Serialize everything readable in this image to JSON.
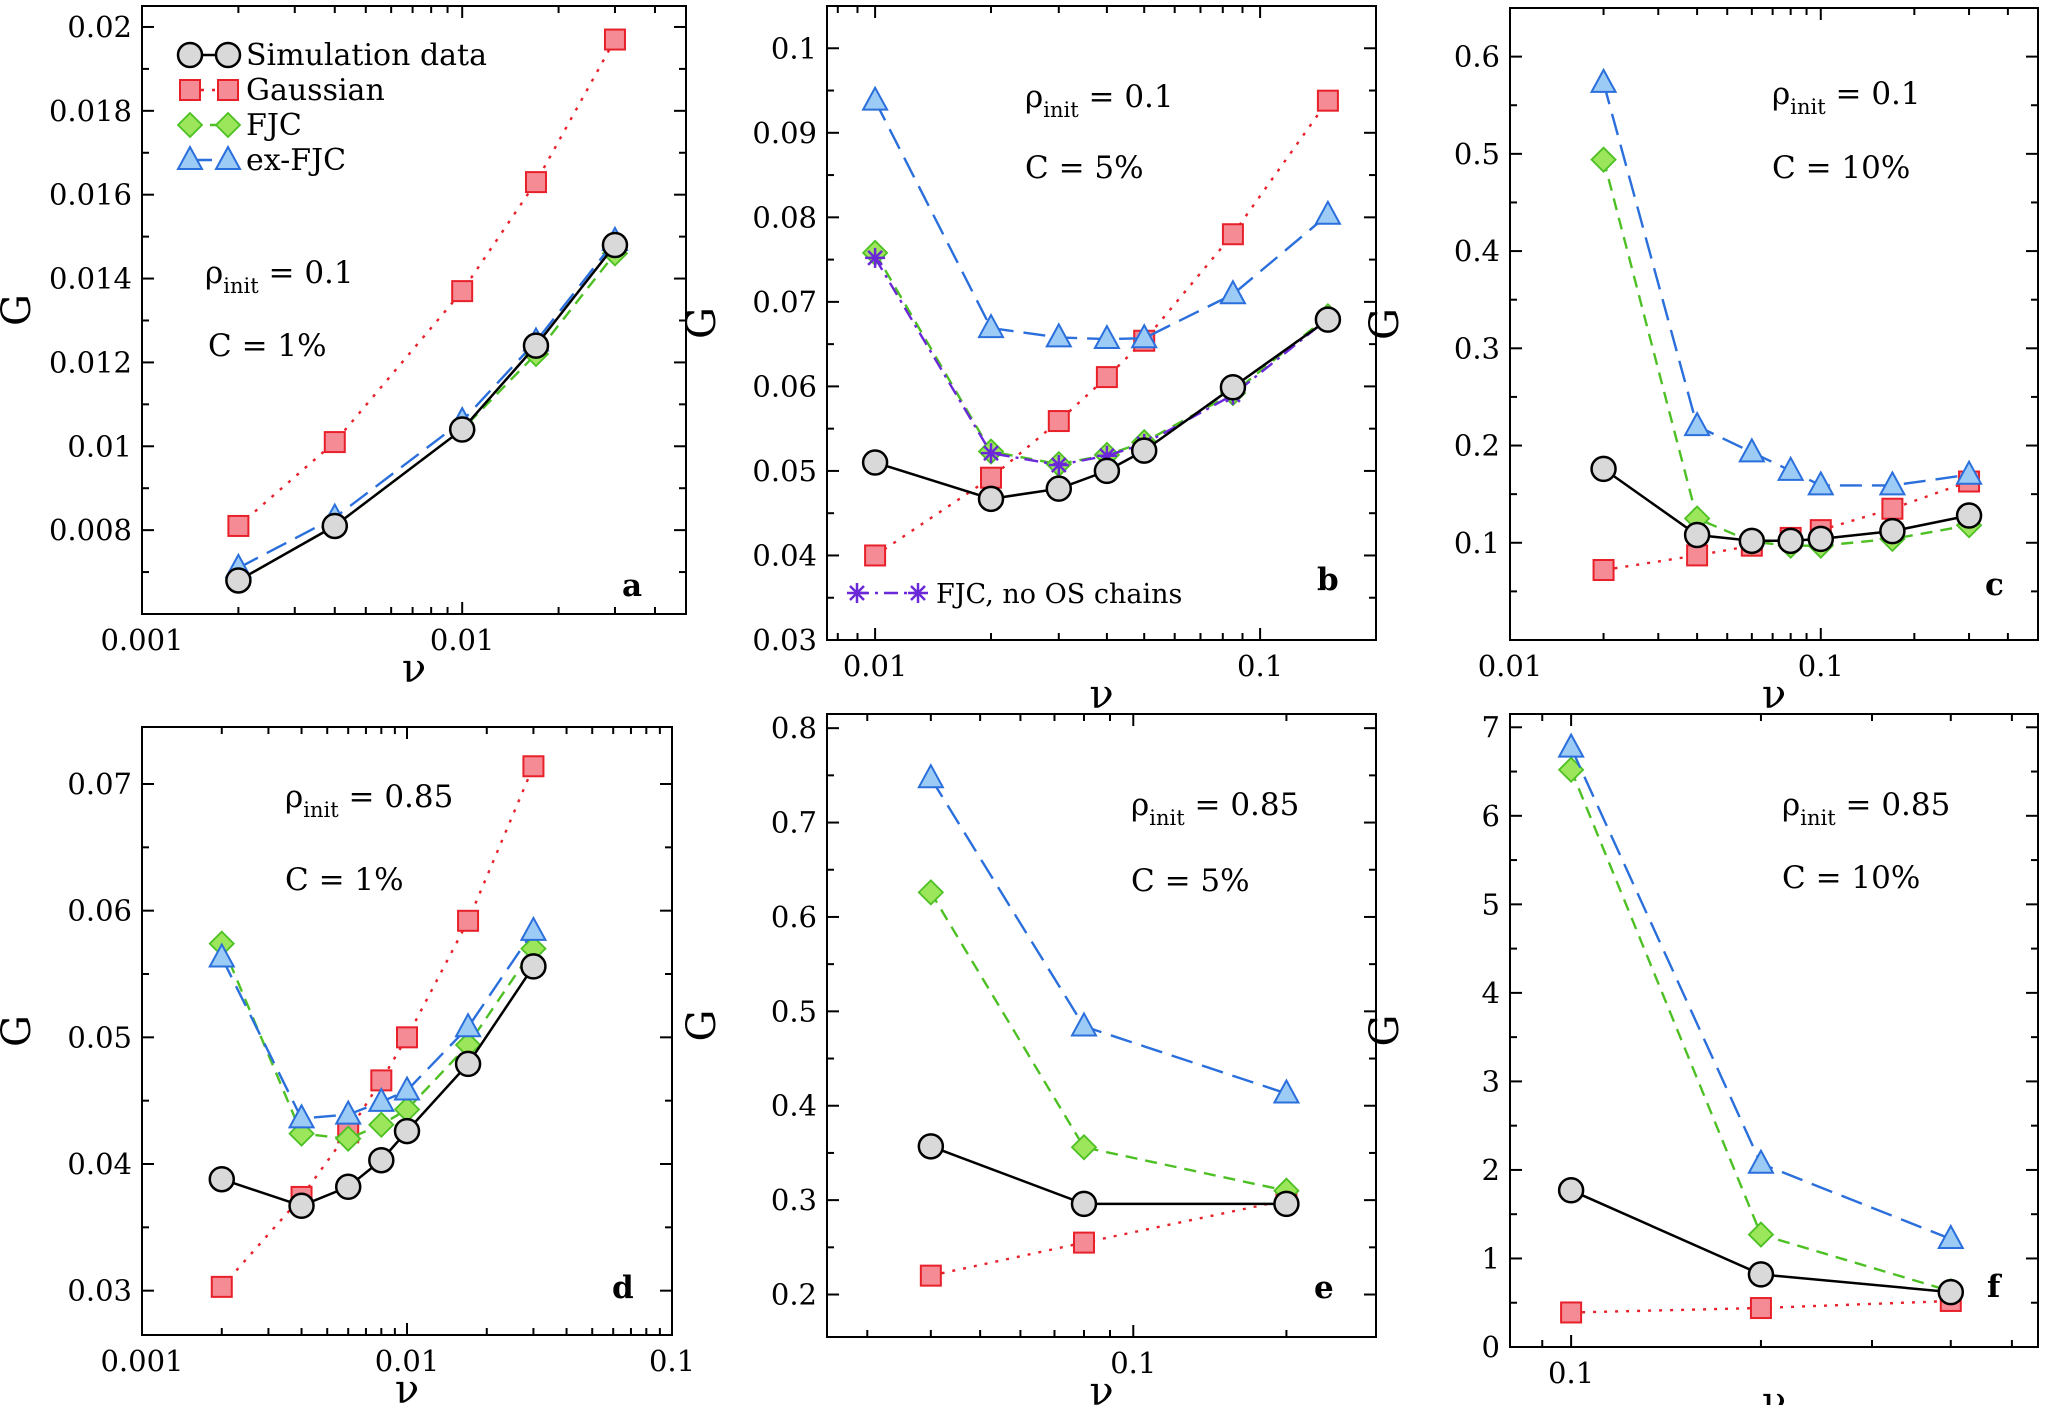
{
  "chart_data": [
    {
      "type": "line",
      "panel_label": "a",
      "xscale": "log",
      "xlim": [
        0.001,
        0.05
      ],
      "ylim": [
        0.006,
        0.0205
      ],
      "xticks": [
        0.001,
        0.01
      ],
      "xtick_labels": [
        "0.001",
        "0.01"
      ],
      "yticks": [
        0.008,
        0.01,
        0.012,
        0.014,
        0.016,
        0.018,
        0.02
      ],
      "ytick_labels": [
        "0.008",
        "0.01",
        "0.012",
        "0.014",
        "0.016",
        "0.018",
        "0.02"
      ],
      "xlabel": "ν",
      "ylabel": "G",
      "annotation": {
        "rho_symbol": "ρ",
        "rho_sub": "init",
        "rho_value": " = 0.1",
        "c_text": "C = 1%"
      },
      "series": [
        {
          "key": "sim",
          "name": "Simulation data",
          "x": [
            0.002,
            0.004,
            0.01,
            0.017,
            0.03
          ],
          "y": [
            0.0068,
            0.0081,
            0.0104,
            0.0124,
            0.0148
          ]
        },
        {
          "key": "gauss",
          "name": "Gaussian",
          "x": [
            0.002,
            0.004,
            0.01,
            0.017,
            0.03
          ],
          "y": [
            0.0081,
            0.0101,
            0.0137,
            0.0163,
            0.0197
          ]
        },
        {
          "key": "fjc",
          "name": "FJC",
          "x": [
            0.002,
            0.004,
            0.01,
            0.017,
            0.03
          ],
          "y": [
            0.0068,
            0.0081,
            0.0104,
            0.0122,
            0.0146
          ]
        },
        {
          "key": "exfjc",
          "name": "ex-FJC",
          "x": [
            0.002,
            0.004,
            0.01,
            0.017,
            0.03
          ],
          "y": [
            0.0071,
            0.0083,
            0.0106,
            0.0125,
            0.0149
          ]
        }
      ],
      "legend": {
        "position": "top-left",
        "entries": [
          "Simulation data",
          "Gaussian",
          "FJC",
          "ex-FJC"
        ]
      }
    },
    {
      "type": "line",
      "panel_label": "b",
      "xscale": "log",
      "xlim": [
        0.0075,
        0.2
      ],
      "ylim": [
        0.03,
        0.105
      ],
      "xticks": [
        0.01,
        0.1
      ],
      "xtick_labels": [
        "0.01",
        "0.1"
      ],
      "yticks": [
        0.03,
        0.04,
        0.05,
        0.06,
        0.07,
        0.08,
        0.09,
        0.1
      ],
      "ytick_labels": [
        "0.03",
        "0.04",
        "0.05",
        "0.06",
        "0.07",
        "0.08",
        "0.09",
        "0.1"
      ],
      "xlabel": "ν",
      "ylabel": "G",
      "annotation": {
        "rho_symbol": "ρ",
        "rho_sub": "init",
        "rho_value": " = 0.1",
        "c_text": "C = 5%"
      },
      "series": [
        {
          "key": "sim",
          "name": "Simulation data",
          "x": [
            0.01,
            0.02,
            0.03,
            0.04,
            0.05,
            0.085,
            0.15
          ],
          "y": [
            0.051,
            0.0467,
            0.0479,
            0.05,
            0.0524,
            0.0599,
            0.0679
          ]
        },
        {
          "key": "gauss",
          "name": "Gaussian",
          "x": [
            0.01,
            0.02,
            0.03,
            0.04,
            0.05,
            0.085,
            0.15
          ],
          "y": [
            0.04,
            0.0492,
            0.0559,
            0.0611,
            0.0654,
            0.078,
            0.0938
          ]
        },
        {
          "key": "fjc",
          "name": "FJC",
          "x": [
            0.01,
            0.02,
            0.03,
            0.04,
            0.05,
            0.085,
            0.15
          ],
          "y": [
            0.0758,
            0.0523,
            0.0508,
            0.0519,
            0.0534,
            0.0592,
            0.0683
          ]
        },
        {
          "key": "exfjc",
          "name": "ex-FJC",
          "x": [
            0.01,
            0.02,
            0.03,
            0.04,
            0.05,
            0.085,
            0.15
          ],
          "y": [
            0.0938,
            0.0669,
            0.0658,
            0.0656,
            0.0657,
            0.0709,
            0.0803
          ]
        },
        {
          "key": "noos",
          "name": "FJC, no OS chains",
          "x": [
            0.01,
            0.02,
            0.03,
            0.04,
            0.05,
            0.085,
            0.15
          ],
          "y": [
            0.0752,
            0.0521,
            0.0507,
            0.0518,
            0.0532,
            0.059,
            0.068
          ]
        }
      ],
      "legend": {
        "position": "bottom-left",
        "entries": [
          "FJC, no OS chains"
        ]
      }
    },
    {
      "type": "line",
      "panel_label": "c",
      "xscale": "log",
      "xlim": [
        0.01,
        0.5
      ],
      "ylim": [
        0,
        0.65
      ],
      "xticks": [
        0.01,
        0.1
      ],
      "xtick_labels": [
        "0.01",
        "0.1"
      ],
      "yticks": [
        0.1,
        0.2,
        0.3,
        0.4,
        0.5,
        0.6
      ],
      "ytick_labels": [
        "0.1",
        "0.2",
        "0.3",
        "0.4",
        "0.5",
        "0.6"
      ],
      "xlabel": "ν",
      "ylabel": "G",
      "annotation": {
        "rho_symbol": "ρ",
        "rho_sub": "init",
        "rho_value": " = 0.1",
        "c_text": "C = 10%"
      },
      "series": [
        {
          "key": "sim",
          "name": "Simulation data",
          "x": [
            0.02,
            0.04,
            0.06,
            0.08,
            0.1,
            0.17,
            0.3
          ],
          "y": [
            0.176,
            0.108,
            0.102,
            0.102,
            0.104,
            0.112,
            0.128
          ]
        },
        {
          "key": "gauss",
          "name": "Gaussian",
          "x": [
            0.02,
            0.04,
            0.06,
            0.08,
            0.1,
            0.17,
            0.3
          ],
          "y": [
            0.072,
            0.087,
            0.097,
            0.105,
            0.113,
            0.135,
            0.163
          ]
        },
        {
          "key": "fjc",
          "name": "FJC",
          "x": [
            0.02,
            0.04,
            0.06,
            0.08,
            0.1,
            0.17,
            0.3
          ],
          "y": [
            0.494,
            0.125,
            0.101,
            0.097,
            0.097,
            0.104,
            0.118
          ]
        },
        {
          "key": "exfjc",
          "name": "ex-FJC",
          "x": [
            0.02,
            0.04,
            0.06,
            0.08,
            0.1,
            0.17,
            0.3
          ],
          "y": [
            0.573,
            0.22,
            0.193,
            0.174,
            0.159,
            0.159,
            0.17
          ]
        }
      ]
    },
    {
      "type": "line",
      "panel_label": "d",
      "xscale": "log",
      "xlim": [
        0.001,
        0.1
      ],
      "ylim": [
        0.0265,
        0.0745
      ],
      "xticks": [
        0.001,
        0.01,
        0.1
      ],
      "xtick_labels": [
        "0.001",
        "0.01",
        "0.1"
      ],
      "yticks": [
        0.03,
        0.04,
        0.05,
        0.06,
        0.07
      ],
      "ytick_labels": [
        "0.03",
        "0.04",
        "0.05",
        "0.06",
        "0.07"
      ],
      "xlabel": "ν",
      "ylabel": "G",
      "annotation": {
        "rho_symbol": "ρ",
        "rho_sub": "init",
        "rho_value": " = 0.85",
        "c_text": "C = 1%"
      },
      "series": [
        {
          "key": "sim",
          "name": "Simulation data",
          "x": [
            0.002,
            0.004,
            0.006,
            0.008,
            0.01,
            0.017,
            0.03
          ],
          "y": [
            0.0388,
            0.0367,
            0.0382,
            0.0403,
            0.0426,
            0.0479,
            0.0556
          ]
        },
        {
          "key": "gauss",
          "name": "Gaussian",
          "x": [
            0.002,
            0.004,
            0.006,
            0.008,
            0.01,
            0.017,
            0.03
          ],
          "y": [
            0.0303,
            0.0374,
            0.0425,
            0.0466,
            0.05,
            0.0592,
            0.0714
          ]
        },
        {
          "key": "fjc",
          "name": "FJC",
          "x": [
            0.002,
            0.004,
            0.006,
            0.008,
            0.01,
            0.017,
            0.03
          ],
          "y": [
            0.0574,
            0.0424,
            0.042,
            0.0431,
            0.0443,
            0.0494,
            0.057
          ]
        },
        {
          "key": "exfjc",
          "name": "ex-FJC",
          "x": [
            0.002,
            0.004,
            0.006,
            0.008,
            0.01,
            0.017,
            0.03
          ],
          "y": [
            0.0563,
            0.0436,
            0.0439,
            0.0449,
            0.0458,
            0.0508,
            0.0584
          ]
        }
      ]
    },
    {
      "type": "line",
      "panel_label": "e",
      "xscale": "log",
      "xlim": [
        0.025,
        0.3
      ],
      "ylim": [
        0.155,
        0.815
      ],
      "xticks": [
        0.1
      ],
      "xtick_labels": [
        "0.1"
      ],
      "yticks": [
        0.2,
        0.3,
        0.4,
        0.5,
        0.6,
        0.7,
        0.8
      ],
      "ytick_labels": [
        "0.2",
        "0.3",
        "0.4",
        "0.5",
        "0.6",
        "0.7",
        "0.8"
      ],
      "xlabel": "ν",
      "ylabel": "G",
      "annotation": {
        "rho_symbol": "ρ",
        "rho_sub": "init",
        "rho_value": " = 0.85",
        "c_text": "C = 5%"
      },
      "series": [
        {
          "key": "sim",
          "name": "Simulation data",
          "x": [
            0.04,
            0.08,
            0.2
          ],
          "y": [
            0.357,
            0.296,
            0.296
          ]
        },
        {
          "key": "gauss",
          "name": "Gaussian",
          "x": [
            0.04,
            0.08,
            0.2
          ],
          "y": [
            0.22,
            0.255,
            0.3
          ]
        },
        {
          "key": "fjc",
          "name": "FJC",
          "x": [
            0.04,
            0.08,
            0.2
          ],
          "y": [
            0.626,
            0.356,
            0.31
          ]
        },
        {
          "key": "exfjc",
          "name": "ex-FJC",
          "x": [
            0.04,
            0.08,
            0.2
          ],
          "y": [
            0.747,
            0.484,
            0.413
          ]
        }
      ]
    },
    {
      "type": "line",
      "panel_label": "f",
      "xscale": "log",
      "xlim": [
        0.08,
        0.55
      ],
      "ylim": [
        0,
        7.15
      ],
      "xticks": [
        0.1
      ],
      "xtick_labels": [
        "0.1"
      ],
      "yticks": [
        0,
        1,
        2,
        3,
        4,
        5,
        6,
        7
      ],
      "ytick_labels": [
        "0",
        "1",
        "2",
        "3",
        "4",
        "5",
        "6",
        "7"
      ],
      "xlabel": "ν",
      "ylabel": "G",
      "annotation": {
        "rho_symbol": "ρ",
        "rho_sub": "init",
        "rho_value": " = 0.85",
        "c_text": "C = 10%"
      },
      "series": [
        {
          "key": "sim",
          "name": "Simulation data",
          "x": [
            0.1,
            0.2,
            0.4
          ],
          "y": [
            1.77,
            0.82,
            0.62
          ]
        },
        {
          "key": "gauss",
          "name": "Gaussian",
          "x": [
            0.1,
            0.2,
            0.4
          ],
          "y": [
            0.39,
            0.44,
            0.52
          ]
        },
        {
          "key": "fjc",
          "name": "FJC",
          "x": [
            0.1,
            0.2,
            0.4
          ],
          "y": [
            6.52,
            1.27,
            0.63
          ]
        },
        {
          "key": "exfjc",
          "name": "ex-FJC",
          "x": [
            0.1,
            0.2,
            0.4
          ],
          "y": [
            6.77,
            2.07,
            1.22
          ]
        }
      ]
    }
  ],
  "colors": {
    "sim_line": "#000000",
    "sim_fill": "#d9d9d9",
    "gauss_line": "#e8202a",
    "gauss_fill": "#f58c95",
    "fjc_line": "#4dc024",
    "fjc_fill": "#9be65a",
    "exfjc_line": "#2a6fdc",
    "exfjc_fill": "#9cccf5",
    "noos_line": "#6a28d8"
  }
}
